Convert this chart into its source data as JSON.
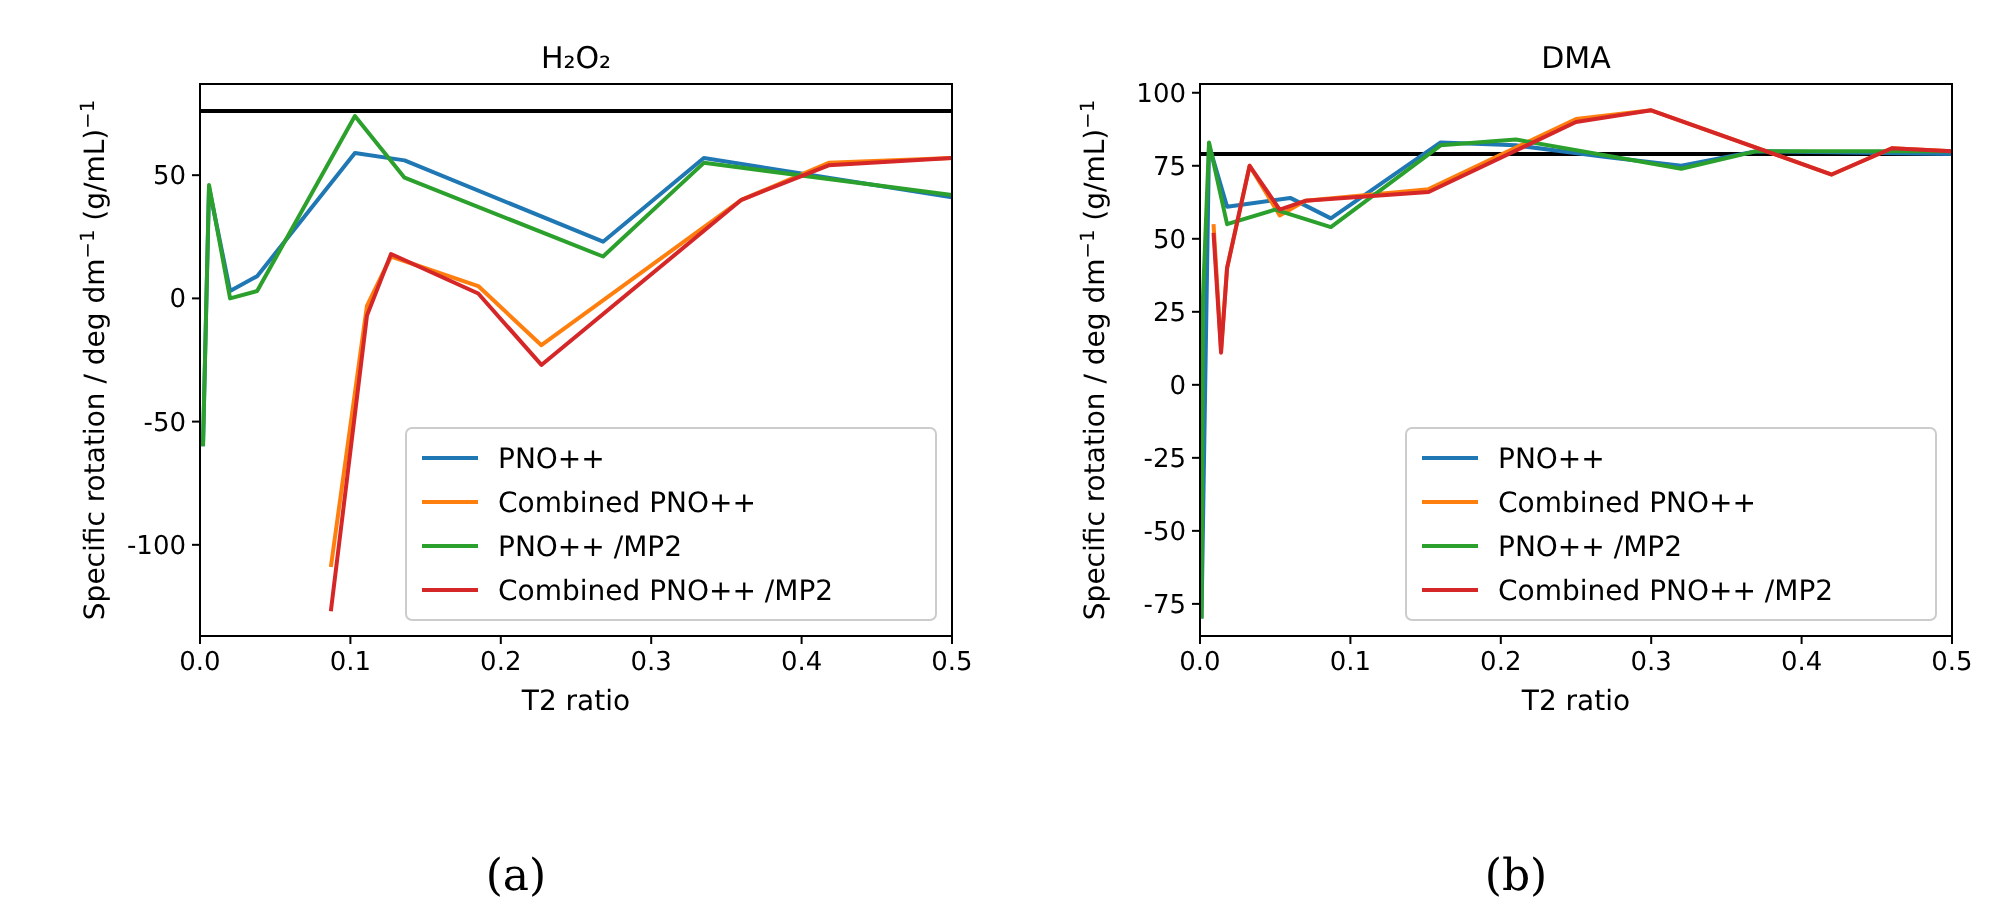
{
  "chart_data": [
    {
      "type": "line",
      "title": "H₂O₂",
      "xlabel": "T2 ratio",
      "ylabel": "Specific rotation / deg dm$^{−1}$ (g/mL)$^{−1}$",
      "xlim": [
        0,
        0.5
      ],
      "ylim": [
        -137,
        87
      ],
      "xticks": [
        {
          "value": 0,
          "label": "0.0"
        },
        0.1,
        0.2,
        0.3,
        0.4,
        0.5
      ],
      "yticks": [
        -100,
        -50,
        0,
        50
      ],
      "legend": "bottom right",
      "grid": false,
      "annotations": [
        "(a)"
      ],
      "ref_lines": [
        {
          "axis": "y",
          "value": 76,
          "color": "#000000"
        }
      ],
      "series": [
        {
          "name": "PNO++",
          "color": "#1f77b4",
          "x": [
            0.002,
            0.006,
            0.02,
            0.038,
            0.103,
            0.136,
            0.268,
            0.335,
            0.5
          ],
          "values": [
            -60,
            45,
            3,
            9,
            59,
            56,
            23,
            57,
            41
          ]
        },
        {
          "name": "Combined PNO++",
          "color": "#ff7f0e",
          "x": [
            0.087,
            0.111,
            0.127,
            0.185,
            0.227,
            0.36,
            0.418,
            0.5
          ],
          "values": [
            -109,
            -3,
            17,
            5,
            -19,
            40,
            55,
            57
          ]
        },
        {
          "name": "PNO++ /MP2",
          "color": "#2ca02c",
          "x": [
            0.002,
            0.006,
            0.02,
            0.038,
            0.103,
            0.136,
            0.268,
            0.335,
            0.5
          ],
          "values": [
            -60,
            46,
            0,
            3,
            74,
            49,
            17,
            55,
            42
          ]
        },
        {
          "name": "Combined PNO++ /MP2",
          "color": "#d62728",
          "x": [
            0.087,
            0.111,
            0.127,
            0.185,
            0.227,
            0.36,
            0.418,
            0.5
          ],
          "values": [
            -127,
            -7,
            18,
            2,
            -27,
            40,
            54,
            57
          ]
        }
      ]
    },
    {
      "type": "line",
      "title": "DMA",
      "xlabel": "T2 ratio",
      "ylabel": "Specific rotation / deg dm$^{−1}$ (g/mL)$^{−1}$",
      "xlim": [
        0,
        0.5
      ],
      "ylim": [
        -86,
        103
      ],
      "xticks": [
        {
          "value": 0,
          "label": "0.0"
        },
        0.1,
        0.2,
        0.3,
        0.4,
        0.5
      ],
      "yticks": [
        -75,
        -50,
        -25,
        0,
        25,
        50,
        75,
        100
      ],
      "legend": "bottom right",
      "grid": false,
      "annotations": [
        "(b)"
      ],
      "ref_lines": [
        {
          "axis": "y",
          "value": 79,
          "color": "#000000"
        }
      ],
      "series": [
        {
          "name": "PNO++",
          "color": "#1f77b4",
          "x": [
            0.001,
            0.006,
            0.018,
            0.06,
            0.087,
            0.16,
            0.21,
            0.27,
            0.32,
            0.37,
            0.5
          ],
          "values": [
            -80,
            82,
            61,
            64,
            57,
            83,
            82,
            78,
            75,
            80,
            79
          ]
        },
        {
          "name": "Combined PNO++",
          "color": "#ff7f0e",
          "x": [
            0.009,
            0.014,
            0.018,
            0.033,
            0.053,
            0.07,
            0.152,
            0.25,
            0.3,
            0.42,
            0.46,
            0.5
          ],
          "values": [
            55,
            12,
            40,
            75,
            58,
            63,
            67,
            91,
            94,
            72,
            81,
            80
          ]
        },
        {
          "name": "PNO++ /MP2",
          "color": "#2ca02c",
          "x": [
            0.001,
            0.002,
            0.006,
            0.018,
            0.05,
            0.087,
            0.16,
            0.21,
            0.32,
            0.37,
            0.5
          ],
          "values": [
            -80,
            30,
            83,
            55,
            60,
            54,
            82,
            84,
            74,
            80,
            80
          ]
        },
        {
          "name": "Combined PNO++ /MP2",
          "color": "#d62728",
          "x": [
            0.009,
            0.014,
            0.018,
            0.033,
            0.053,
            0.07,
            0.152,
            0.25,
            0.3,
            0.42,
            0.46,
            0.5
          ],
          "values": [
            52,
            11,
            40,
            75,
            60,
            63,
            66,
            90,
            94,
            72,
            81,
            80
          ]
        }
      ]
    }
  ]
}
